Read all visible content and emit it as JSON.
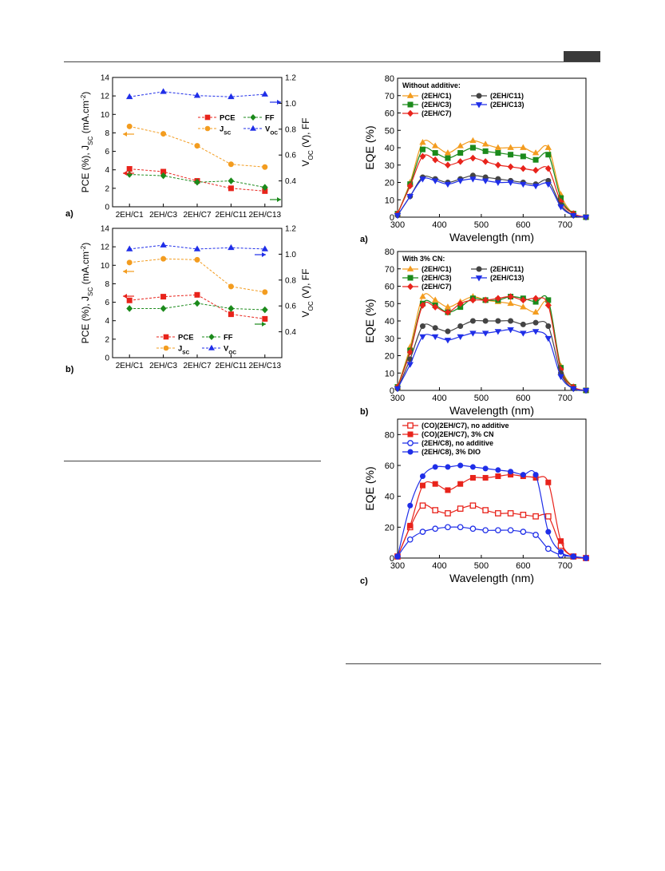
{
  "chart_data": [
    {
      "type": "line",
      "panel": "a)",
      "categories": [
        "2EH/C1",
        "2EH/C3",
        "2EH/C7",
        "2EH/C11",
        "2EH/C13"
      ],
      "ylabel": "PCE (%), J_SC (mA.cm^-2)",
      "ylabel_right": "V_OC (V), FF",
      "ylim": [
        0,
        14
      ],
      "ylim_right": [
        0.2,
        1.2
      ],
      "yticks": [
        0,
        2,
        4,
        6,
        8,
        10,
        12,
        14
      ],
      "yticks_right": [
        0.4,
        0.6,
        0.8,
        1.0,
        1.2
      ],
      "grid": false,
      "legend": "right",
      "series": [
        {
          "name": "PCE",
          "axis": "left",
          "marker": "square",
          "color": "#e8231b",
          "values": [
            4.1,
            3.8,
            2.8,
            2.0,
            1.7
          ]
        },
        {
          "name": "J_SC",
          "axis": "left",
          "marker": "circle",
          "color": "#f39c1f",
          "values": [
            8.7,
            7.9,
            6.6,
            4.6,
            4.3
          ]
        },
        {
          "name": "FF",
          "axis": "right",
          "marker": "diamond",
          "color": "#1b8a1b",
          "values": [
            0.45,
            0.44,
            0.39,
            0.4,
            0.35
          ]
        },
        {
          "name": "V_OC",
          "axis": "right",
          "marker": "triangle",
          "color": "#1f2ee8",
          "values": [
            1.05,
            1.09,
            1.06,
            1.05,
            1.07
          ]
        }
      ]
    },
    {
      "type": "line",
      "panel": "b)",
      "categories": [
        "2EH/C1",
        "2EH/C3",
        "2EH/C7",
        "2EH/C11",
        "2EH/C13"
      ],
      "ylabel": "PCE (%), J_SC (mA.cm^-2)",
      "ylabel_right": "V_OC (V), FF",
      "ylim": [
        0,
        14
      ],
      "ylim_right": [
        0.2,
        1.2
      ],
      "yticks": [
        0,
        2,
        4,
        6,
        8,
        10,
        12,
        14
      ],
      "yticks_right": [
        0.4,
        0.6,
        0.8,
        1.0,
        1.2
      ],
      "grid": false,
      "legend": "bottom-right",
      "series": [
        {
          "name": "PCE",
          "axis": "left",
          "marker": "square",
          "color": "#e8231b",
          "values": [
            6.2,
            6.6,
            6.8,
            4.7,
            4.2
          ]
        },
        {
          "name": "J_SC",
          "axis": "left",
          "marker": "circle",
          "color": "#f39c1f",
          "values": [
            10.3,
            10.7,
            10.6,
            7.7,
            7.1
          ]
        },
        {
          "name": "FF",
          "axis": "right",
          "marker": "diamond",
          "color": "#1b8a1b",
          "values": [
            0.58,
            0.58,
            0.62,
            0.58,
            0.57
          ]
        },
        {
          "name": "V_OC",
          "axis": "right",
          "marker": "triangle",
          "color": "#1f2ee8",
          "values": [
            1.04,
            1.07,
            1.04,
            1.05,
            1.04
          ]
        }
      ]
    },
    {
      "type": "line",
      "panel": "a)",
      "x": [
        300,
        330,
        360,
        390,
        420,
        450,
        480,
        510,
        540,
        570,
        600,
        630,
        660,
        690,
        720,
        750
      ],
      "xlabel": "Wavelength (nm)",
      "ylabel": "EQE (%)",
      "xlim": [
        300,
        750
      ],
      "ylim": [
        0,
        80
      ],
      "xticks": [
        300,
        400,
        500,
        600,
        700
      ],
      "yticks": [
        0,
        10,
        20,
        30,
        40,
        50,
        60,
        70,
        80
      ],
      "grid": false,
      "legend": "top-left",
      "legend_title": "Without additive:",
      "series": [
        {
          "name": "(2EH/C1)",
          "marker": "triangle",
          "color": "#f39c1f",
          "values": [
            2,
            20,
            43,
            41,
            37,
            41,
            44,
            42,
            40,
            40,
            40,
            37,
            40,
            13,
            2,
            0
          ]
        },
        {
          "name": "(2EH/C3)",
          "marker": "square",
          "color": "#1b8a1b",
          "values": [
            2,
            19,
            39,
            37,
            34,
            37,
            40,
            38,
            37,
            36,
            35,
            33,
            36,
            11,
            2,
            0
          ]
        },
        {
          "name": "(2EH/C7)",
          "marker": "diamond",
          "color": "#e8231b",
          "values": [
            2,
            18,
            35,
            33,
            30,
            32,
            34,
            32,
            30,
            29,
            28,
            27,
            28,
            9,
            2,
            0
          ]
        },
        {
          "name": "(2EH/C11)",
          "marker": "circle",
          "color": "#444444",
          "values": [
            1,
            12,
            23,
            22,
            20,
            22,
            24,
            23,
            22,
            21,
            20,
            19,
            21,
            7,
            1,
            0
          ]
        },
        {
          "name": "(2EH/C13)",
          "marker": "inverted-triangle",
          "color": "#1f2ee8",
          "values": [
            1,
            12,
            22,
            21,
            19,
            21,
            22,
            21,
            20,
            20,
            19,
            18,
            19,
            6,
            1,
            0
          ]
        }
      ]
    },
    {
      "type": "line",
      "panel": "b)",
      "x": [
        300,
        330,
        360,
        390,
        420,
        450,
        480,
        510,
        540,
        570,
        600,
        630,
        660,
        690,
        720,
        750
      ],
      "xlabel": "Wavelength (nm)",
      "ylabel": "EQE (%)",
      "xlim": [
        300,
        750
      ],
      "ylim": [
        0,
        80
      ],
      "xticks": [
        300,
        400,
        500,
        600,
        700
      ],
      "yticks": [
        0,
        10,
        20,
        30,
        40,
        50,
        60,
        70,
        80
      ],
      "grid": false,
      "legend": "top-left",
      "legend_title": "With 3% CN:",
      "series": [
        {
          "name": "(2EH/C1)",
          "marker": "triangle",
          "color": "#f39c1f",
          "values": [
            2,
            25,
            54,
            52,
            48,
            51,
            54,
            52,
            51,
            50,
            48,
            45,
            50,
            14,
            2,
            0
          ]
        },
        {
          "name": "(2EH/C3)",
          "marker": "square",
          "color": "#1b8a1b",
          "values": [
            2,
            23,
            50,
            49,
            45,
            48,
            53,
            52,
            52,
            54,
            53,
            51,
            52,
            13,
            2,
            0
          ]
        },
        {
          "name": "(2EH/C7)",
          "marker": "diamond",
          "color": "#e8231b",
          "values": [
            2,
            22,
            49,
            48,
            45,
            50,
            52,
            52,
            53,
            54,
            52,
            53,
            49,
            12,
            2,
            0
          ]
        },
        {
          "name": "(2EH/C11)",
          "marker": "circle",
          "color": "#444444",
          "values": [
            1,
            18,
            37,
            36,
            34,
            37,
            40,
            40,
            40,
            40,
            38,
            39,
            37,
            10,
            1,
            0
          ]
        },
        {
          "name": "(2EH/C13)",
          "marker": "inverted-triangle",
          "color": "#1f2ee8",
          "values": [
            1,
            15,
            31,
            31,
            29,
            31,
            33,
            33,
            34,
            35,
            33,
            34,
            30,
            8,
            1,
            0
          ]
        }
      ]
    },
    {
      "type": "line",
      "panel": "c)",
      "x": [
        300,
        330,
        360,
        390,
        420,
        450,
        480,
        510,
        540,
        570,
        600,
        630,
        660,
        690,
        720,
        750
      ],
      "xlabel": "Wavelength (nm)",
      "ylabel": "EQE (%)",
      "xlim": [
        300,
        750
      ],
      "ylim": [
        0,
        90
      ],
      "xticks": [
        300,
        400,
        500,
        600,
        700
      ],
      "yticks": [
        0,
        20,
        40,
        60,
        80
      ],
      "grid": false,
      "legend": "top-left",
      "series": [
        {
          "name": "(CO)(2EH/C7), no additive",
          "marker": "square-open",
          "color": "#e8231b",
          "values": [
            1,
            20,
            34,
            31,
            29,
            32,
            34,
            31,
            29,
            29,
            28,
            27,
            27,
            8,
            1,
            0
          ]
        },
        {
          "name": "(CO)(2EH/C7), 3% CN",
          "marker": "square",
          "color": "#e8231b",
          "values": [
            1,
            21,
            47,
            48,
            44,
            48,
            52,
            52,
            53,
            54,
            53,
            52,
            49,
            11,
            1,
            0
          ]
        },
        {
          "name": "(2EH/C8), no additive",
          "marker": "circle-open",
          "color": "#1f2ee8",
          "values": [
            1,
            12,
            17,
            19,
            20,
            20,
            19,
            18,
            18,
            18,
            17,
            15,
            6,
            2,
            1,
            0
          ]
        },
        {
          "name": "(2EH/C8), 3% DIO",
          "marker": "circle",
          "color": "#1f2ee8",
          "values": [
            1,
            34,
            53,
            59,
            59,
            60,
            59,
            58,
            57,
            56,
            54,
            54,
            17,
            4,
            1,
            0
          ]
        }
      ]
    }
  ]
}
